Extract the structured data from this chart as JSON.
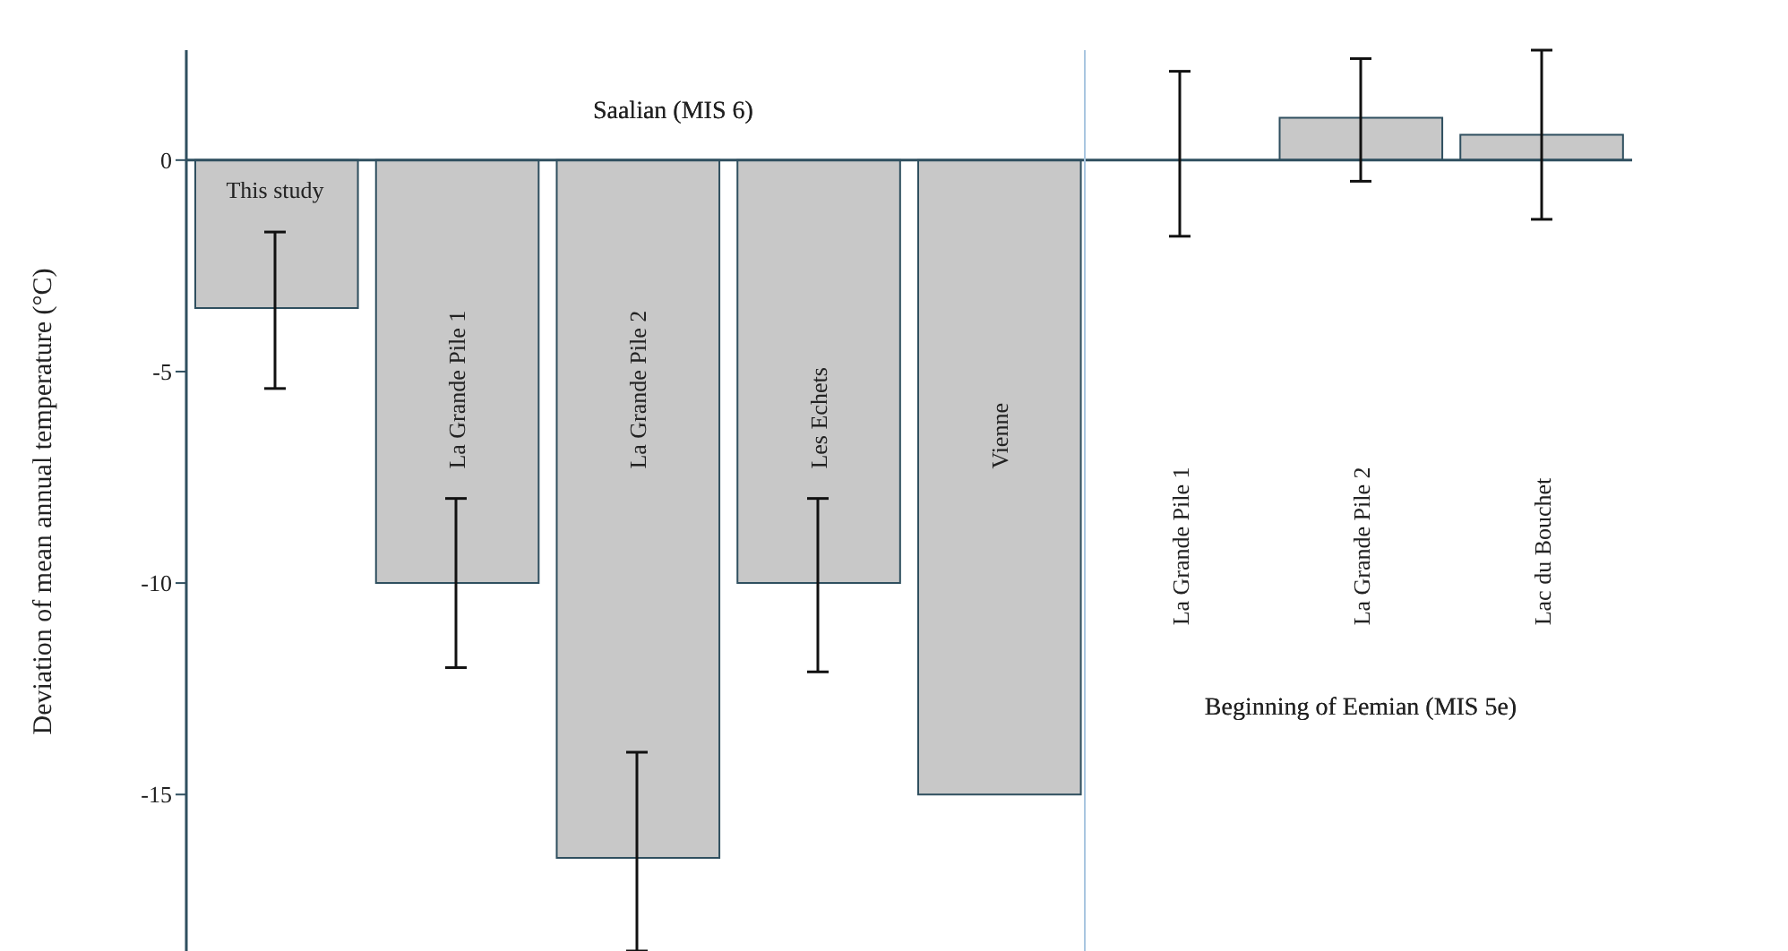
{
  "chart_data": {
    "type": "bar",
    "ylabel": "Deviation of mean annual temperature (°C)",
    "categories": [
      "This study",
      "La Grande Pile 1",
      "La Grande Pile 2",
      "Les Echets",
      "Vienne",
      "La Grande Pile 1",
      "La Grande Pile 2",
      "Lac du Bouchet"
    ],
    "values": [
      -3.5,
      -10,
      -16.5,
      -10,
      -15,
      0,
      1,
      0.6
    ],
    "errors": [
      [
        -5.4,
        -1.7
      ],
      [
        -12,
        -8
      ],
      [
        -18.7,
        -14
      ],
      [
        -12.1,
        -8
      ],
      null,
      [
        -1.8,
        2.1
      ],
      [
        -0.5,
        2.4
      ],
      [
        -1.4,
        2.6
      ]
    ],
    "color": "#c8c8c8",
    "ylim": [
      -18.7,
      2.6
    ],
    "yticks": [
      0,
      -5,
      -10,
      -15
    ],
    "ref_lines": [
      {
        "axis": "x",
        "value": "Vienne",
        "color": "#a9c6e0"
      }
    ],
    "annotations": [
      "Saalian (MIS 6)",
      "Beginning of Eemian (MIS 5e)"
    ]
  }
}
